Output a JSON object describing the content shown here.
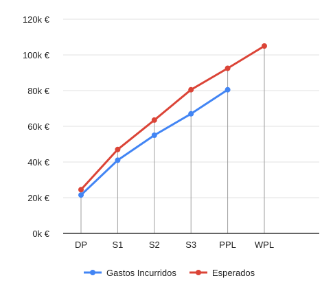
{
  "chart_data": {
    "type": "line",
    "title": "",
    "xlabel": "",
    "ylabel": "",
    "categories": [
      "DP",
      "S1",
      "S2",
      "S3",
      "PPL",
      "WPL"
    ],
    "ylim": [
      0,
      120000
    ],
    "yticks": [
      {
        "value": 0,
        "label": "0k €"
      },
      {
        "value": 20000,
        "label": "20k €"
      },
      {
        "value": 40000,
        "label": "40k €"
      },
      {
        "value": 60000,
        "label": "60k €"
      },
      {
        "value": 80000,
        "label": "80k €"
      },
      {
        "value": 100000,
        "label": "100k €"
      },
      {
        "value": 120000,
        "label": "120k €"
      }
    ],
    "grid": true,
    "legend": "bottom",
    "series": [
      {
        "name": "Gastos Incurridos",
        "color": "#4285f4",
        "values": [
          21500,
          41000,
          55000,
          67000,
          80500,
          null
        ]
      },
      {
        "name": "Esperados",
        "color": "#db4437",
        "values": [
          24500,
          47000,
          63500,
          80500,
          92500,
          105000
        ]
      }
    ]
  }
}
